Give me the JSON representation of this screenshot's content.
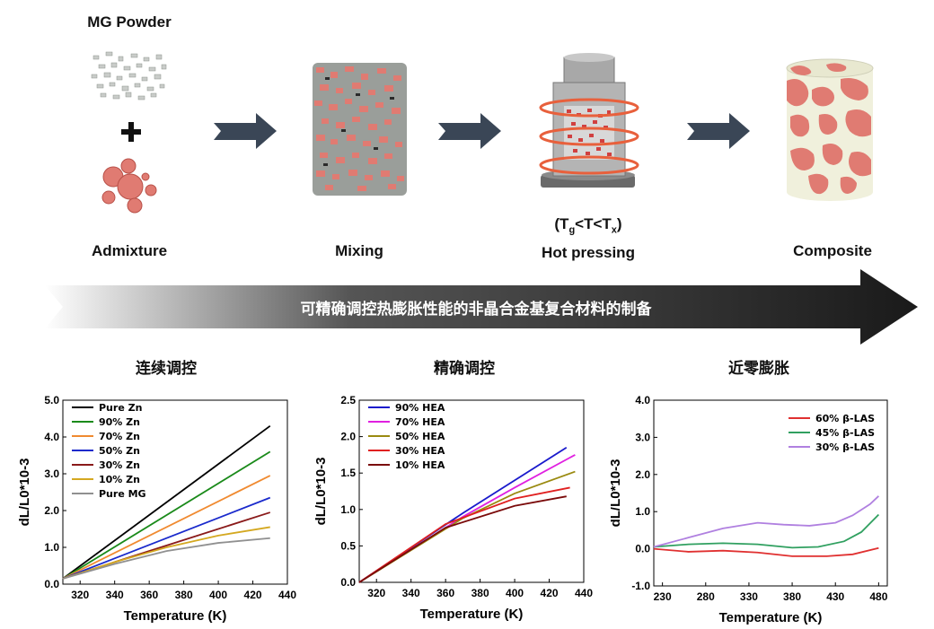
{
  "process": {
    "mg_powder": "MG Powder",
    "admixture": "Admixture",
    "mixing": "Mixing",
    "hot_pressing_cond": "(Tg<T<Tx)",
    "hot_pressing": "Hot pressing",
    "composite": "Composite",
    "banner": "可精确调控热膨胀性能的非晶合金基复合材料的制备"
  },
  "sections": [
    "连续调控",
    "精确调控",
    "近零膨胀"
  ],
  "colors": {
    "particle": "#e07b72",
    "mg": "#c8cbc8",
    "arrow": "#3a4656",
    "coil": "#e8603c",
    "composite_bg": "#f0f0dc"
  },
  "chart_data": [
    {
      "type": "line",
      "xlabel": "Temperature (K)",
      "ylabel": "dL/L0*10-3",
      "xlim": [
        310,
        440
      ],
      "ylim": [
        0,
        5.0
      ],
      "xticks": [
        320,
        340,
        360,
        380,
        400,
        420,
        440
      ],
      "yticks": [
        0.0,
        1.0,
        2.0,
        3.0,
        4.0,
        5.0
      ],
      "xticklabels": [
        "320",
        "340",
        "360",
        "380",
        "400",
        "420",
        "440"
      ],
      "yticklabels": [
        "0.0",
        "1.0",
        "2.0",
        "3.0",
        "4.0",
        "5.0"
      ],
      "legend": "top-left",
      "series": [
        {
          "name": "Pure Zn",
          "color": "#000000",
          "x": [
            310,
            430
          ],
          "y": [
            0.15,
            4.3
          ]
        },
        {
          "name": "90% Zn",
          "color": "#1a8a1a",
          "x": [
            310,
            430
          ],
          "y": [
            0.15,
            3.6
          ]
        },
        {
          "name": "70% Zn",
          "color": "#f08a30",
          "x": [
            310,
            430
          ],
          "y": [
            0.15,
            2.95
          ]
        },
        {
          "name": "50% Zn",
          "color": "#1a2acc",
          "x": [
            310,
            430
          ],
          "y": [
            0.15,
            2.35
          ]
        },
        {
          "name": "30% Zn",
          "color": "#8a1a1a",
          "x": [
            310,
            430
          ],
          "y": [
            0.15,
            1.95
          ]
        },
        {
          "name": "10% Zn",
          "color": "#d4a820",
          "x": [
            310,
            340,
            370,
            400,
            430
          ],
          "y": [
            0.15,
            0.6,
            1.0,
            1.32,
            1.55
          ]
        },
        {
          "name": "Pure MG",
          "color": "#909090",
          "x": [
            310,
            340,
            370,
            400,
            430
          ],
          "y": [
            0.15,
            0.55,
            0.9,
            1.12,
            1.25
          ]
        }
      ]
    },
    {
      "type": "line",
      "xlabel": "Temperature (K)",
      "ylabel": "dL/L0*10-3",
      "xlim": [
        310,
        440
      ],
      "ylim": [
        0,
        2.5
      ],
      "xticks": [
        320,
        340,
        360,
        380,
        400,
        420,
        440
      ],
      "yticks": [
        0.0,
        0.5,
        1.0,
        1.5,
        2.0,
        2.5
      ],
      "xticklabels": [
        "320",
        "340",
        "360",
        "380",
        "400",
        "420",
        "440"
      ],
      "yticklabels": [
        "0.0",
        "0.5",
        "1.0",
        "1.5",
        "2.0",
        "2.5"
      ],
      "legend": "top-left",
      "series": [
        {
          "name": "90% HEA",
          "color": "#1a1acc",
          "x": [
            310,
            370,
            430
          ],
          "y": [
            0.0,
            0.95,
            1.85
          ]
        },
        {
          "name": "70% HEA",
          "color": "#e020e0",
          "x": [
            310,
            370,
            400,
            435
          ],
          "y": [
            0.0,
            0.9,
            1.3,
            1.75
          ]
        },
        {
          "name": "50% HEA",
          "color": "#9a8a10",
          "x": [
            310,
            370,
            400,
            435
          ],
          "y": [
            0.0,
            0.88,
            1.22,
            1.52
          ]
        },
        {
          "name": "30% HEA",
          "color": "#e02020",
          "x": [
            310,
            360,
            400,
            432
          ],
          "y": [
            0.0,
            0.8,
            1.15,
            1.3
          ]
        },
        {
          "name": "10% HEA",
          "color": "#7a0a0a",
          "x": [
            310,
            360,
            400,
            430
          ],
          "y": [
            0.0,
            0.75,
            1.05,
            1.18
          ]
        }
      ]
    },
    {
      "type": "line",
      "xlabel": "Temperature (K)",
      "ylabel": "dL/L0*10-3",
      "xlim": [
        220,
        490
      ],
      "ylim": [
        -1.0,
        4.0
      ],
      "xticks": [
        230,
        280,
        330,
        380,
        430,
        480
      ],
      "yticks": [
        -1.0,
        0.0,
        1.0,
        2.0,
        3.0,
        4.0
      ],
      "xticklabels": [
        "230",
        "280",
        "330",
        "380",
        "430",
        "480"
      ],
      "yticklabels": [
        "-1.0",
        "0.0",
        "1.0",
        "2.0",
        "3.0",
        "4.0"
      ],
      "legend": "top-right",
      "series": [
        {
          "name": "60% β-LAS",
          "color": "#e03030",
          "x": [
            220,
            260,
            300,
            340,
            380,
            420,
            450,
            480
          ],
          "y": [
            0.0,
            -0.08,
            -0.05,
            -0.1,
            -0.2,
            -0.2,
            -0.15,
            0.02
          ]
        },
        {
          "name": "45% β-LAS",
          "color": "#30a060",
          "x": [
            220,
            260,
            300,
            340,
            380,
            410,
            440,
            460,
            480
          ],
          "y": [
            0.05,
            0.12,
            0.15,
            0.12,
            0.03,
            0.05,
            0.2,
            0.45,
            0.92
          ]
        },
        {
          "name": "30% β-LAS",
          "color": "#b080e0",
          "x": [
            220,
            260,
            300,
            340,
            370,
            400,
            430,
            450,
            470,
            480
          ],
          "y": [
            0.05,
            0.3,
            0.55,
            0.7,
            0.65,
            0.62,
            0.7,
            0.9,
            1.2,
            1.42
          ]
        }
      ]
    }
  ]
}
